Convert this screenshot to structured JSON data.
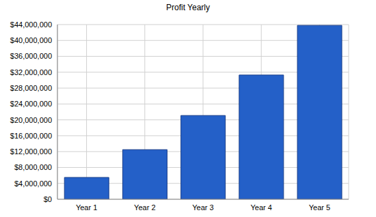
{
  "chart_data": {
    "type": "bar",
    "title": "Profit Yearly",
    "categories": [
      "Year 1",
      "Year 2",
      "Year 3",
      "Year 4",
      "Year 5"
    ],
    "values": [
      5500000,
      12500000,
      21100000,
      31300000,
      43800000
    ],
    "color": "#2460c8",
    "ylim": [
      0,
      44000000
    ],
    "yticks": [
      {
        "value": 0,
        "label": "$0"
      },
      {
        "value": 4000000,
        "label": "$4,000,000"
      },
      {
        "value": 8000000,
        "label": "$8,000,000"
      },
      {
        "value": 12000000,
        "label": "$12,000,000"
      },
      {
        "value": 16000000,
        "label": "$16,000,000"
      },
      {
        "value": 20000000,
        "label": "$20,000,000"
      },
      {
        "value": 24000000,
        "label": "$24,000,000"
      },
      {
        "value": 28000000,
        "label": "$28,000,000"
      },
      {
        "value": 32000000,
        "label": "$32,000,000"
      },
      {
        "value": 36000000,
        "label": "$36,000,000"
      },
      {
        "value": 40000000,
        "label": "$40,000,000"
      },
      {
        "value": 44000000,
        "label": "$44,000,000"
      }
    ],
    "grid": true
  }
}
